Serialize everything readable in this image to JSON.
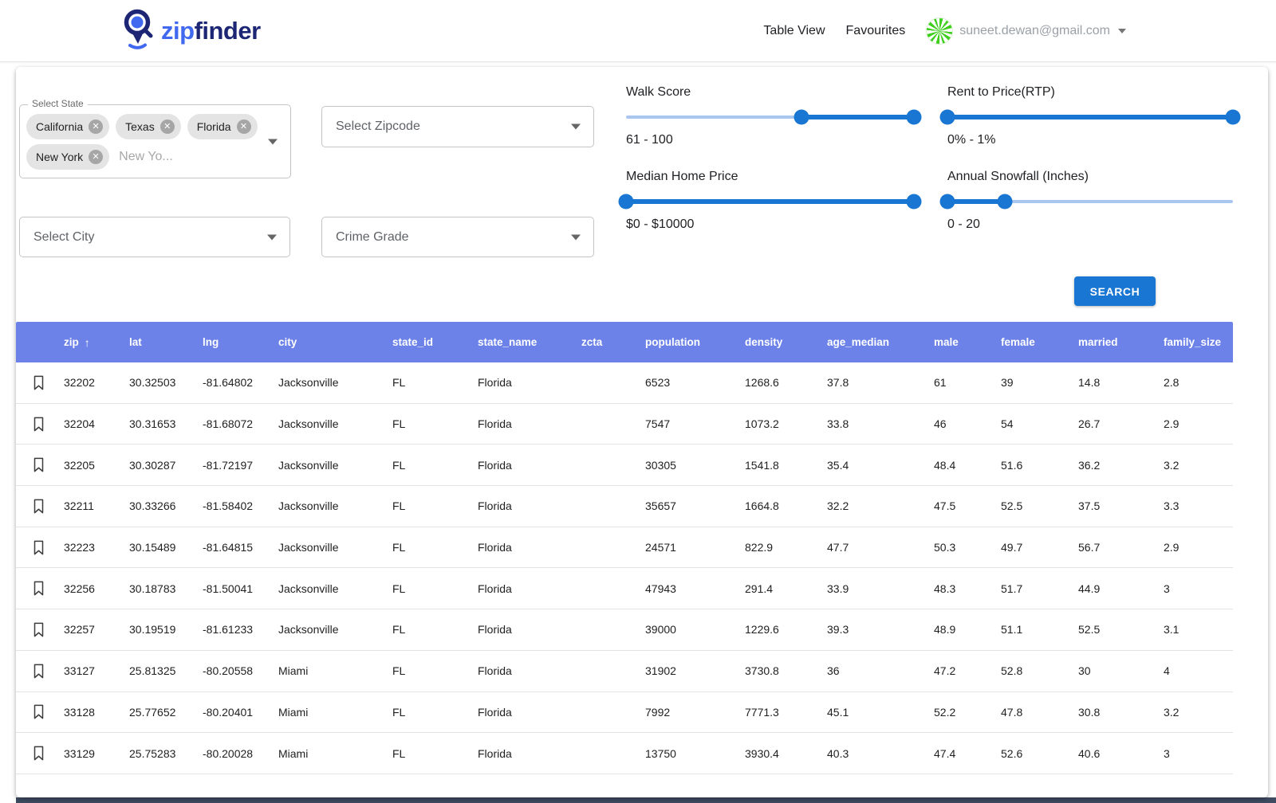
{
  "header": {
    "logo": {
      "part1": "zip",
      "part2": "finder"
    },
    "nav": [
      {
        "label": "Table View"
      },
      {
        "label": "Favourites"
      }
    ],
    "user_email": "suneet.dewan@gmail.com"
  },
  "filters": {
    "state": {
      "label": "Select State",
      "chips": [
        "California",
        "Texas",
        "Florida",
        "New York"
      ],
      "input_text": "New Yo..."
    },
    "zipcode": {
      "placeholder": "Select Zipcode"
    },
    "city": {
      "placeholder": "Select City"
    },
    "crime": {
      "placeholder": "Crime Grade"
    }
  },
  "sliders": [
    {
      "id": "walk_score",
      "label": "Walk Score",
      "range_text": "61 - 100",
      "low_pct": 61,
      "high_pct": 100
    },
    {
      "id": "rent_to_price",
      "label": "Rent to Price(RTP)",
      "range_text": "0% - 1%",
      "low_pct": 0,
      "high_pct": 100
    },
    {
      "id": "median_home_price",
      "label": "Median Home Price",
      "range_text": "$0 - $10000",
      "low_pct": 0,
      "high_pct": 100
    },
    {
      "id": "annual_snowfall",
      "label": "Annual Snowfall (Inches)",
      "range_text": "0 - 20",
      "low_pct": 0,
      "high_pct": 20
    }
  ],
  "search_button": "SEARCH",
  "table": {
    "sort_column": "zip",
    "sort_direction": "asc",
    "columns": [
      "zip",
      "lat",
      "lng",
      "city",
      "state_id",
      "state_name",
      "zcta",
      "population",
      "density",
      "age_median",
      "male",
      "female",
      "married",
      "family_size"
    ],
    "rows": [
      [
        "32202",
        "30.32503",
        "-81.64802",
        "Jacksonville",
        "FL",
        "Florida",
        "",
        "6523",
        "1268.6",
        "37.8",
        "61",
        "39",
        "14.8",
        "2.8"
      ],
      [
        "32204",
        "30.31653",
        "-81.68072",
        "Jacksonville",
        "FL",
        "Florida",
        "",
        "7547",
        "1073.2",
        "33.8",
        "46",
        "54",
        "26.7",
        "2.9"
      ],
      [
        "32205",
        "30.30287",
        "-81.72197",
        "Jacksonville",
        "FL",
        "Florida",
        "",
        "30305",
        "1541.8",
        "35.4",
        "48.4",
        "51.6",
        "36.2",
        "3.2"
      ],
      [
        "32211",
        "30.33266",
        "-81.58402",
        "Jacksonville",
        "FL",
        "Florida",
        "",
        "35657",
        "1664.8",
        "32.2",
        "47.5",
        "52.5",
        "37.5",
        "3.3"
      ],
      [
        "32223",
        "30.15489",
        "-81.64815",
        "Jacksonville",
        "FL",
        "Florida",
        "",
        "24571",
        "822.9",
        "47.7",
        "50.3",
        "49.7",
        "56.7",
        "2.9"
      ],
      [
        "32256",
        "30.18783",
        "-81.50041",
        "Jacksonville",
        "FL",
        "Florida",
        "",
        "47943",
        "291.4",
        "33.9",
        "48.3",
        "51.7",
        "44.9",
        "3"
      ],
      [
        "32257",
        "30.19519",
        "-81.61233",
        "Jacksonville",
        "FL",
        "Florida",
        "",
        "39000",
        "1229.6",
        "39.3",
        "48.9",
        "51.1",
        "52.5",
        "3.1"
      ],
      [
        "33127",
        "25.81325",
        "-80.20558",
        "Miami",
        "FL",
        "Florida",
        "",
        "31902",
        "3730.8",
        "36",
        "47.2",
        "52.8",
        "30",
        "4"
      ],
      [
        "33128",
        "25.77652",
        "-80.20401",
        "Miami",
        "FL",
        "Florida",
        "",
        "7992",
        "7771.3",
        "45.1",
        "52.2",
        "47.8",
        "30.8",
        "3.2"
      ],
      [
        "33129",
        "25.75283",
        "-80.20028",
        "Miami",
        "FL",
        "Florida",
        "",
        "13750",
        "3930.4",
        "40.3",
        "47.4",
        "52.6",
        "40.6",
        "3"
      ]
    ]
  },
  "colors": {
    "accent_blue": "#1976d2",
    "table_header_bg": "#6c82e8",
    "logo_blue": "#4169f0",
    "logo_navy": "#1c2674",
    "avatar_green": "#3ecf1f",
    "slider_track_inactive": "#a9c7ee",
    "bottom_strip": "#3e4b61"
  }
}
